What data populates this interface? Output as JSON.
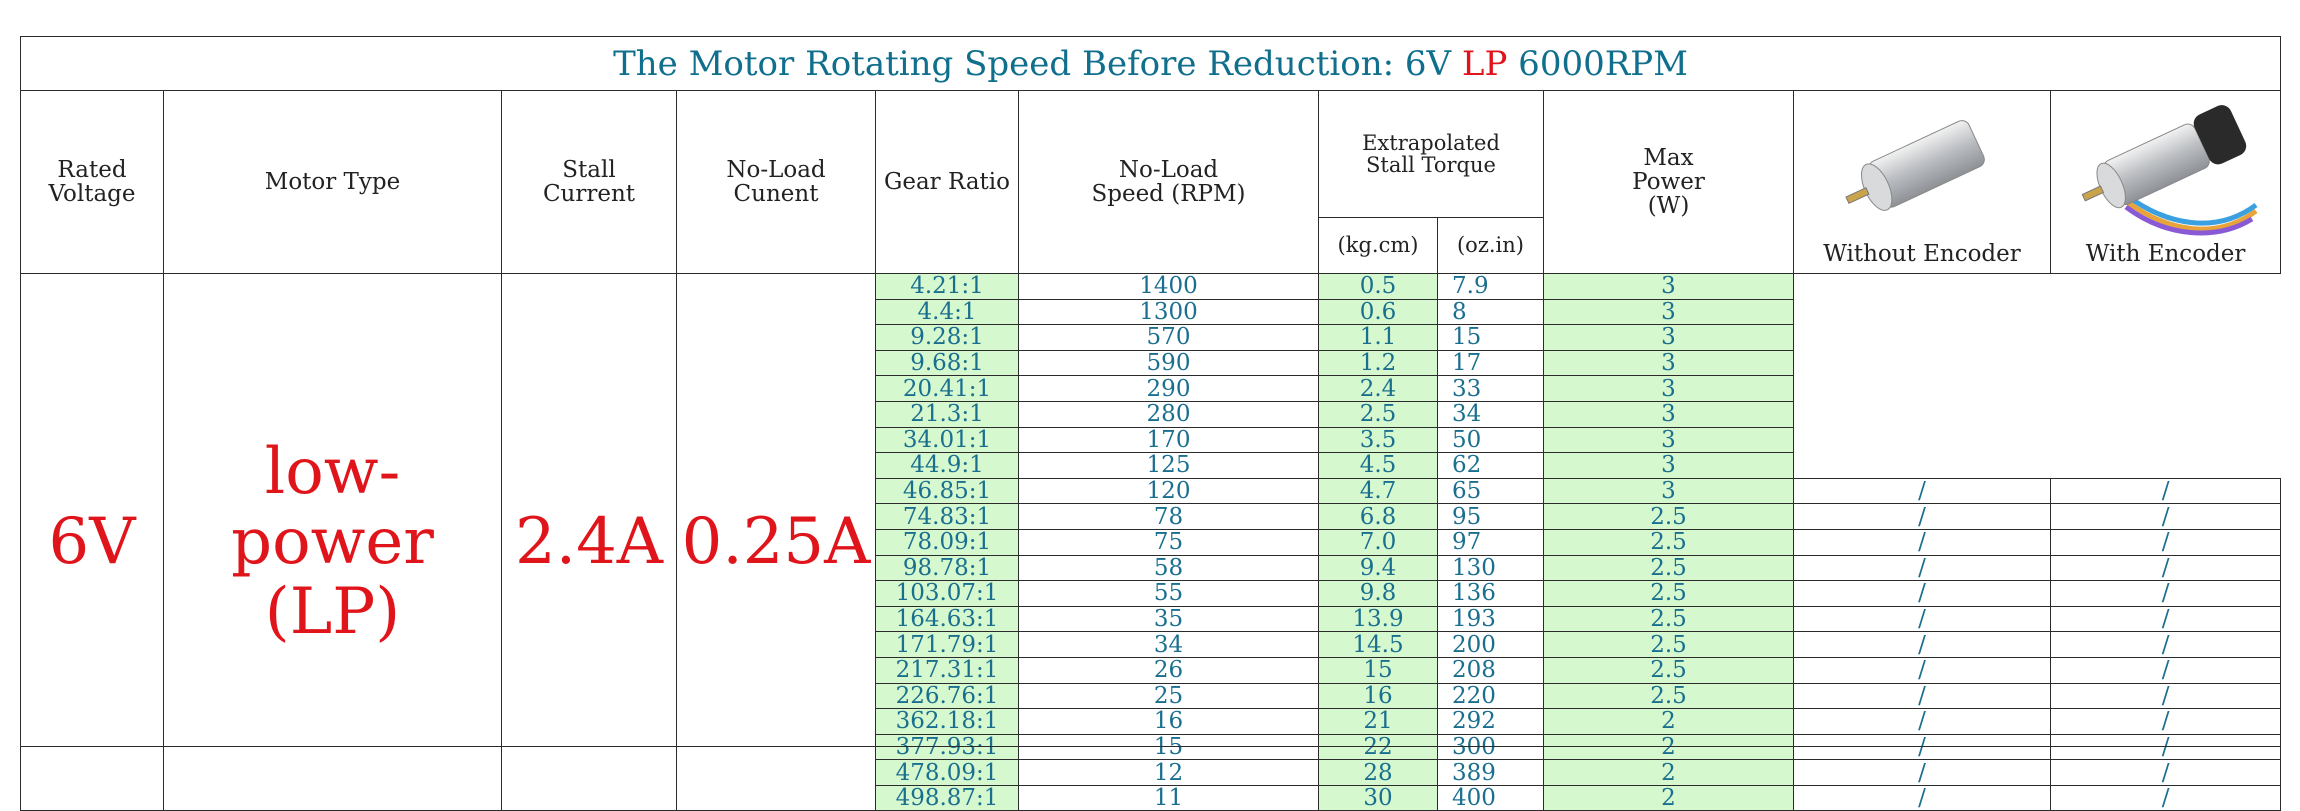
{
  "title": {
    "prefix": "The Motor Rotating Speed Before Reduction: 6V ",
    "lp": "LP",
    "suffix": " 6000RPM"
  },
  "headers": {
    "rated_voltage": "Rated Voltage",
    "motor_type": "Motor Type",
    "stall_current": "Stall Current",
    "no_load_current": "No-Load Cunent",
    "gear_ratio": "Gear Ratio",
    "no_load_speed": "No-Load Speed (RPM)",
    "extrapolated": "Extrapolated Stall Torque",
    "kgcm": "(kg.cm)",
    "ozin": "(oz.in)",
    "max_power": "Max Power (W)",
    "without_encoder": "Without Encoder",
    "with_encoder": "With Encoder"
  },
  "summary": {
    "voltage": "6V",
    "motor_type_line1": "low-power",
    "motor_type_line2": "(LP)",
    "stall_current": "2.4A",
    "no_load_current": "0.25A"
  },
  "rows": [
    {
      "ratio": "4.21:1",
      "speed": "1400",
      "kg": "0.5",
      "oz": "7.9",
      "power": "3",
      "wo": "",
      "w": ""
    },
    {
      "ratio": "4.4:1",
      "speed": "1300",
      "kg": "0.6",
      "oz": "8",
      "power": "3",
      "wo": "",
      "w": ""
    },
    {
      "ratio": "9.28:1",
      "speed": "570",
      "kg": "1.1",
      "oz": "15",
      "power": "3",
      "wo": "",
      "w": ""
    },
    {
      "ratio": "9.68:1",
      "speed": "590",
      "kg": "1.2",
      "oz": "17",
      "power": "3",
      "wo": "",
      "w": ""
    },
    {
      "ratio": "20.41:1",
      "speed": "290",
      "kg": "2.4",
      "oz": "33",
      "power": "3",
      "wo": "",
      "w": ""
    },
    {
      "ratio": "21.3:1",
      "speed": "280",
      "kg": "2.5",
      "oz": "34",
      "power": "3",
      "wo": "",
      "w": ""
    },
    {
      "ratio": "34.01:1",
      "speed": "170",
      "kg": "3.5",
      "oz": "50",
      "power": "3",
      "wo": "",
      "w": ""
    },
    {
      "ratio": "44.9:1",
      "speed": "125",
      "kg": "4.5",
      "oz": "62",
      "power": "3",
      "wo": "",
      "w": ""
    },
    {
      "ratio": "46.85:1",
      "speed": "120",
      "kg": "4.7",
      "oz": "65",
      "power": "3",
      "wo": "/",
      "w": "/"
    },
    {
      "ratio": "74.83:1",
      "speed": "78",
      "kg": "6.8",
      "oz": "95",
      "power": "2.5",
      "wo": "/",
      "w": "/"
    },
    {
      "ratio": "78.09:1",
      "speed": "75",
      "kg": "7.0",
      "oz": "97",
      "power": "2.5",
      "wo": "/",
      "w": "/"
    },
    {
      "ratio": "98.78:1",
      "speed": "58",
      "kg": "9.4",
      "oz": "130",
      "power": "2.5",
      "wo": "/",
      "w": "/"
    },
    {
      "ratio": "103.07:1",
      "speed": "55",
      "kg": "9.8",
      "oz": "136",
      "power": "2.5",
      "wo": "/",
      "w": "/"
    },
    {
      "ratio": "164.63:1",
      "speed": "35",
      "kg": "13.9",
      "oz": "193",
      "power": "2.5",
      "wo": "/",
      "w": "/"
    },
    {
      "ratio": "171.79:1",
      "speed": "34",
      "kg": "14.5",
      "oz": "200",
      "power": "2.5",
      "wo": "/",
      "w": "/"
    },
    {
      "ratio": "217.31:1",
      "speed": "26",
      "kg": "15",
      "oz": "208",
      "power": "2.5",
      "wo": "/",
      "w": "/"
    },
    {
      "ratio": "226.76:1",
      "speed": "25",
      "kg": "16",
      "oz": "220",
      "power": "2.5",
      "wo": "/",
      "w": "/"
    },
    {
      "ratio": "362.18:1",
      "speed": "16",
      "kg": "21",
      "oz": "292",
      "power": "2",
      "wo": "/",
      "w": "/"
    },
    {
      "ratio": "377.93:1",
      "speed": "15",
      "kg": "22",
      "oz": "300",
      "power": "2",
      "wo": "/",
      "w": "/"
    },
    {
      "ratio": "478.09:1",
      "speed": "12",
      "kg": "28",
      "oz": "389",
      "power": "2",
      "wo": "/",
      "w": "/"
    },
    {
      "ratio": "498.87:1",
      "speed": "11",
      "kg": "30",
      "oz": "400",
      "power": "2",
      "wo": "/",
      "w": "/"
    }
  ],
  "icons": {
    "motor_without_encoder": "gear-motor-icon",
    "motor_with_encoder": "gear-motor-encoder-icon"
  },
  "colors": {
    "title": "#0f6f8c",
    "accent_red": "#e0151b",
    "value": "#1a6f8f",
    "green_fill": "#d5f8cf"
  }
}
